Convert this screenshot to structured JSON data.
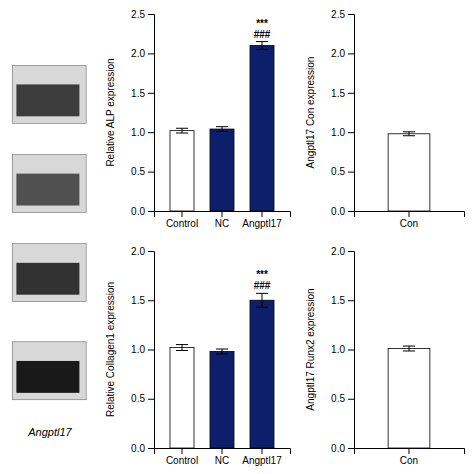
{
  "chart_data": [
    {
      "type": "blot",
      "annotations": [
        {
          "text": "Angptl17"
        }
      ]
    },
    {
      "type": "bar",
      "categories": [
        "Control",
        "NC",
        "Angptl17"
      ],
      "values": [
        1.02,
        1.04,
        2.1
      ],
      "errors": [
        0.03,
        0.03,
        0.05
      ],
      "colors": [
        "#ffffff",
        "#0d1f6b",
        "#0d1f6b"
      ],
      "ylabel": "Relative ALP expression",
      "ylim": [
        0,
        2.5
      ],
      "yticks": [
        {
          "value": 0,
          "label": "0.0"
        },
        0.5,
        {
          "value": 1,
          "label": "1.0"
        },
        1.5,
        {
          "value": 2,
          "label": "2.0"
        },
        2.5
      ],
      "annotations": [
        {
          "text": "###",
          "x": "Angptl17"
        },
        {
          "text": "***",
          "x": "Angptl17"
        }
      ]
    },
    {
      "type": "bar",
      "categories": [
        "Control",
        "NC",
        "Angptl17"
      ],
      "values": [
        1.02,
        0.98,
        1.5
      ],
      "errors": [
        0.03,
        0.025,
        0.07
      ],
      "colors": [
        "#ffffff",
        "#0d1f6b",
        "#0d1f6b"
      ],
      "ylabel": "Relative Collagen1 expression",
      "ylim": [
        0,
        2.0
      ],
      "yticks": [
        {
          "value": 0,
          "label": "0.0"
        },
        0.5,
        {
          "value": 1,
          "label": "1.0"
        },
        1.5,
        {
          "value": 2,
          "label": "2.0"
        }
      ],
      "annotations": [
        {
          "text": "###",
          "x": "Angptl17"
        },
        {
          "text": "***",
          "x": "Angptl17"
        }
      ]
    },
    {
      "type": "bar",
      "categories": [
        "Con"
      ],
      "values": [
        0.98
      ],
      "errors": [
        0.025
      ],
      "colors": [
        "#ffffff"
      ],
      "ylabel": "Angptl17 Con expression",
      "ylim": [
        0,
        2.5
      ],
      "yticks": [
        {
          "value": 0,
          "label": "0.0"
        },
        0.5,
        {
          "value": 1,
          "label": "1.0"
        },
        1.5,
        {
          "value": 2,
          "label": "2.0"
        },
        2.5
      ]
    },
    {
      "type": "bar",
      "categories": [
        "Con"
      ],
      "values": [
        1.01
      ],
      "errors": [
        0.025
      ],
      "colors": [
        "#ffffff"
      ],
      "ylabel": "Angptl17 Runx2 expression",
      "ylim": [
        0,
        2.0
      ],
      "yticks": [
        {
          "value": 0,
          "label": "0.0"
        },
        0.5,
        {
          "value": 1,
          "label": "1.0"
        },
        1.5,
        {
          "value": 2,
          "label": "2.0"
        }
      ]
    }
  ]
}
